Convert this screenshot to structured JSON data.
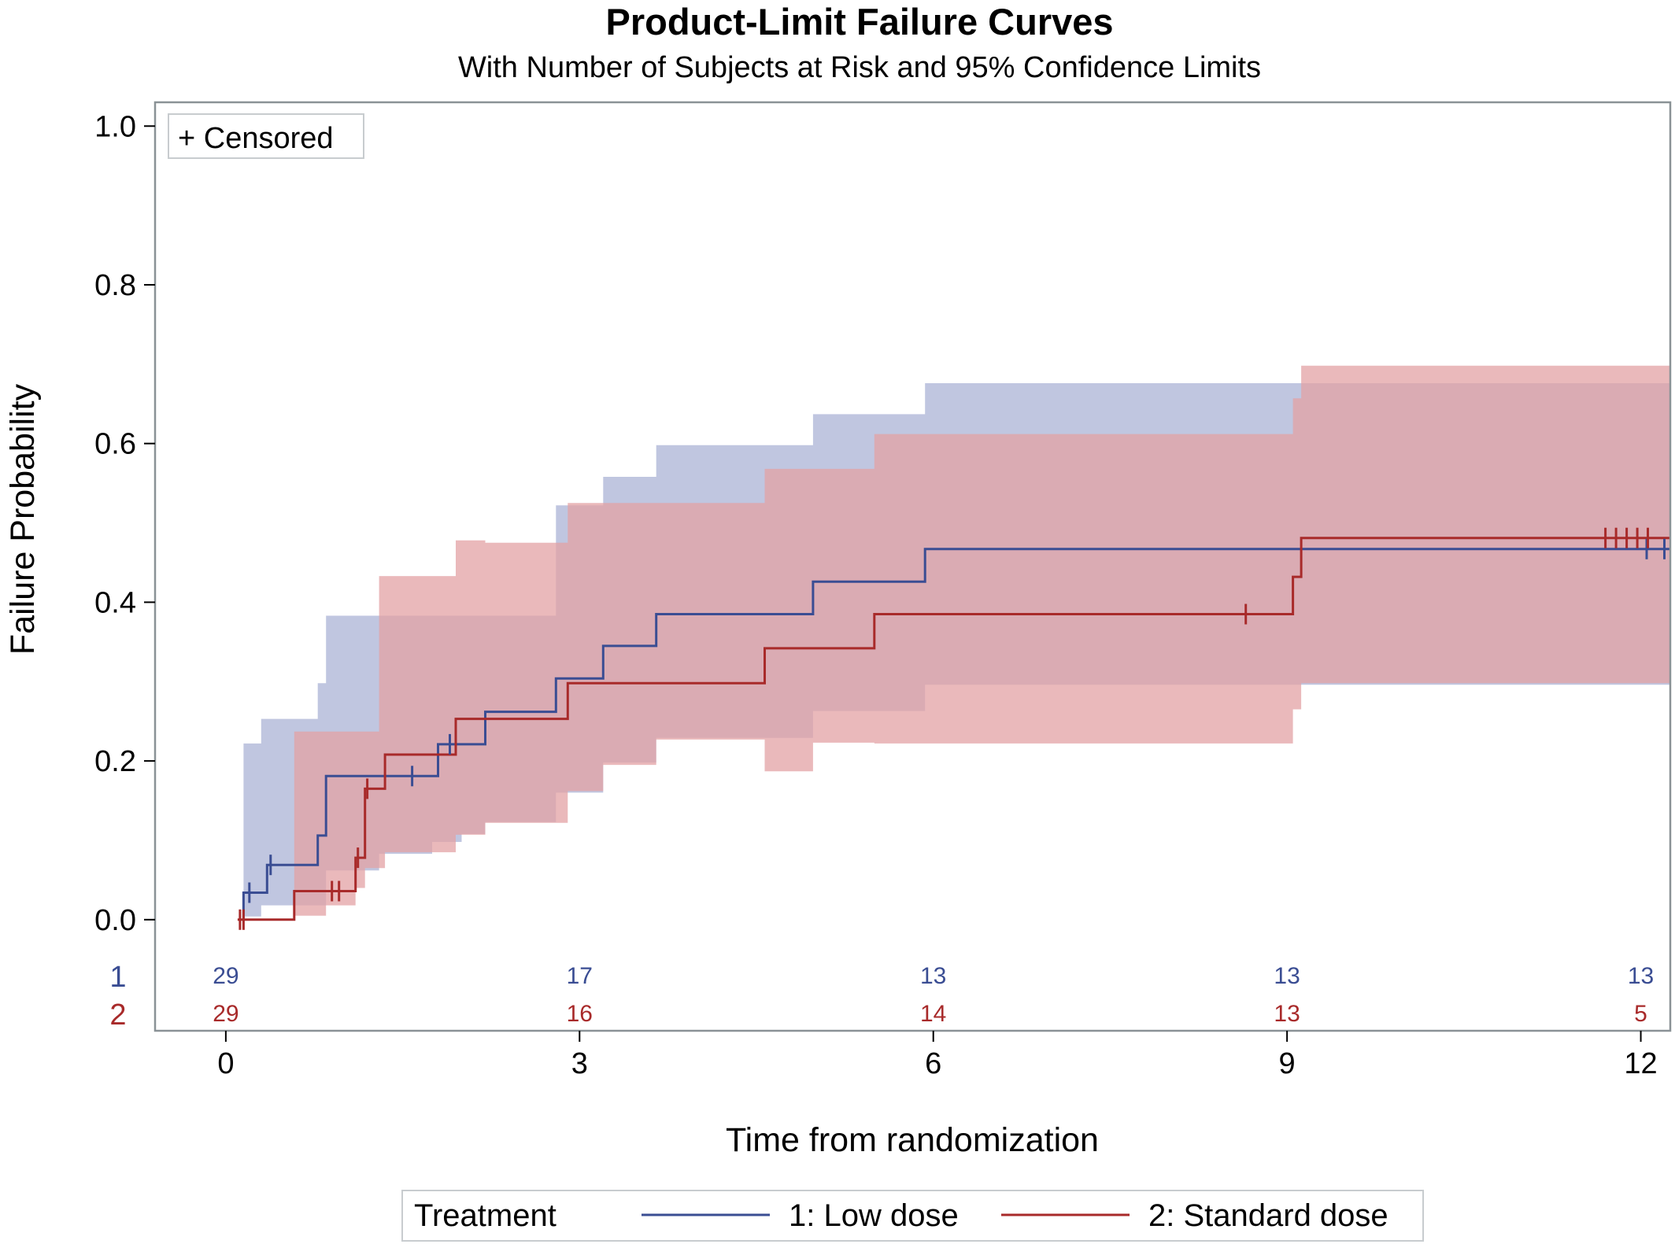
{
  "colors": {
    "low_dose": "#3a4d93",
    "standard_dose": "#a82a2a",
    "low_dose_band": "#b5bcdb",
    "standard_dose_band": "#e3a2a4",
    "frame": "#8a9296"
  },
  "chart_data": {
    "type": "line",
    "step": true,
    "title": "Product-Limit Failure Curves",
    "subtitle": "With Number of Subjects at Risk and 95% Confidence Limits",
    "xlabel": "Time from randomization",
    "ylabel": "Failure Probability",
    "xlim": [
      -0.6,
      12.25
    ],
    "ylim": [
      -0.14,
      1.03
    ],
    "x_ticks": [
      0,
      3,
      6,
      9,
      12
    ],
    "y_ticks": [
      0.0,
      0.2,
      0.4,
      0.6,
      0.8,
      1.0
    ],
    "y_tick_labels": [
      "0.0",
      "0.2",
      "0.4",
      "0.6",
      "0.8",
      "1.0"
    ],
    "inset_text": "+ Censored",
    "legend": {
      "title": "Treatment",
      "position": "bottom",
      "entries": [
        "1: Low dose",
        "2: Standard dose"
      ]
    },
    "series": [
      {
        "name": "1: Low dose",
        "color_key": "low_dose",
        "band_color_key": "low_dose_band",
        "steps": [
          [
            0.15,
            0.034
          ],
          [
            0.35,
            0.069
          ],
          [
            0.78,
            0.106
          ],
          [
            0.85,
            0.181
          ],
          [
            1.8,
            0.221
          ],
          [
            2.2,
            0.262
          ],
          [
            2.8,
            0.304
          ],
          [
            3.2,
            0.345
          ],
          [
            3.65,
            0.385
          ],
          [
            4.98,
            0.426
          ],
          [
            5.93,
            0.467
          ]
        ],
        "start": [
          0.15,
          0.0
        ],
        "end_x": 12.25,
        "censored": [
          0.2,
          0.38,
          1.58,
          1.9,
          12.05,
          12.2
        ],
        "ci_upper": [
          [
            0.15,
            0.222
          ],
          [
            0.3,
            0.253
          ],
          [
            0.78,
            0.298
          ],
          [
            0.85,
            0.383
          ],
          [
            1.2,
            0.383
          ],
          [
            2.8,
            0.522
          ],
          [
            2.9,
            0.522
          ],
          [
            3.2,
            0.558
          ],
          [
            3.65,
            0.598
          ],
          [
            4.98,
            0.637
          ],
          [
            5.93,
            0.676
          ]
        ],
        "ci_lower": [
          [
            0.15,
            0.004
          ],
          [
            0.3,
            0.018
          ],
          [
            0.78,
            0.018
          ],
          [
            0.85,
            0.062
          ],
          [
            1.3,
            0.083
          ],
          [
            1.75,
            0.098
          ],
          [
            2.0,
            0.108
          ],
          [
            2.2,
            0.123
          ],
          [
            2.8,
            0.16
          ],
          [
            3.2,
            0.198
          ],
          [
            3.65,
            0.229
          ],
          [
            4.98,
            0.263
          ],
          [
            5.93,
            0.296
          ]
        ],
        "at_risk": [
          29,
          17,
          13,
          13,
          13
        ]
      },
      {
        "name": "2: Standard dose",
        "color_key": "standard_dose",
        "band_color_key": "standard_dose_band",
        "steps": [
          [
            0.58,
            0.036
          ],
          [
            1.1,
            0.078
          ],
          [
            1.18,
            0.121
          ],
          [
            1.18,
            0.165
          ],
          [
            1.35,
            0.208
          ],
          [
            1.95,
            0.253
          ],
          [
            2.9,
            0.298
          ],
          [
            4.57,
            0.342
          ],
          [
            5.5,
            0.385
          ],
          [
            9.05,
            0.432
          ],
          [
            9.12,
            0.481
          ]
        ],
        "start": [
          0.1,
          0.0
        ],
        "end_x": 12.25,
        "censored": [
          0.12,
          0.15,
          0.9,
          0.96,
          1.12,
          1.2,
          8.65,
          11.7,
          11.79,
          11.88,
          11.97,
          12.06
        ],
        "ci_upper": [
          [
            0.58,
            0.237
          ],
          [
            1.3,
            0.433
          ],
          [
            1.75,
            0.433
          ],
          [
            1.95,
            0.478
          ],
          [
            2.2,
            0.475
          ],
          [
            2.9,
            0.525
          ],
          [
            4.57,
            0.568
          ],
          [
            5.5,
            0.612
          ],
          [
            9.05,
            0.657
          ],
          [
            9.12,
            0.698
          ]
        ],
        "ci_lower": [
          [
            0.58,
            0.005
          ],
          [
            0.85,
            0.018
          ],
          [
            1.1,
            0.04
          ],
          [
            1.18,
            0.065
          ],
          [
            1.35,
            0.085
          ],
          [
            1.95,
            0.107
          ],
          [
            2.2,
            0.122
          ],
          [
            2.9,
            0.162
          ],
          [
            3.2,
            0.195
          ],
          [
            3.65,
            0.227
          ],
          [
            4.57,
            0.187
          ],
          [
            4.98,
            0.223
          ],
          [
            5.5,
            0.222
          ],
          [
            9.05,
            0.265
          ],
          [
            9.12,
            0.298
          ]
        ],
        "at_risk": [
          29,
          16,
          14,
          13,
          5
        ]
      }
    ],
    "risk_table": {
      "groups": [
        "1",
        "2"
      ],
      "times": [
        0,
        3,
        6,
        9,
        12
      ]
    }
  }
}
